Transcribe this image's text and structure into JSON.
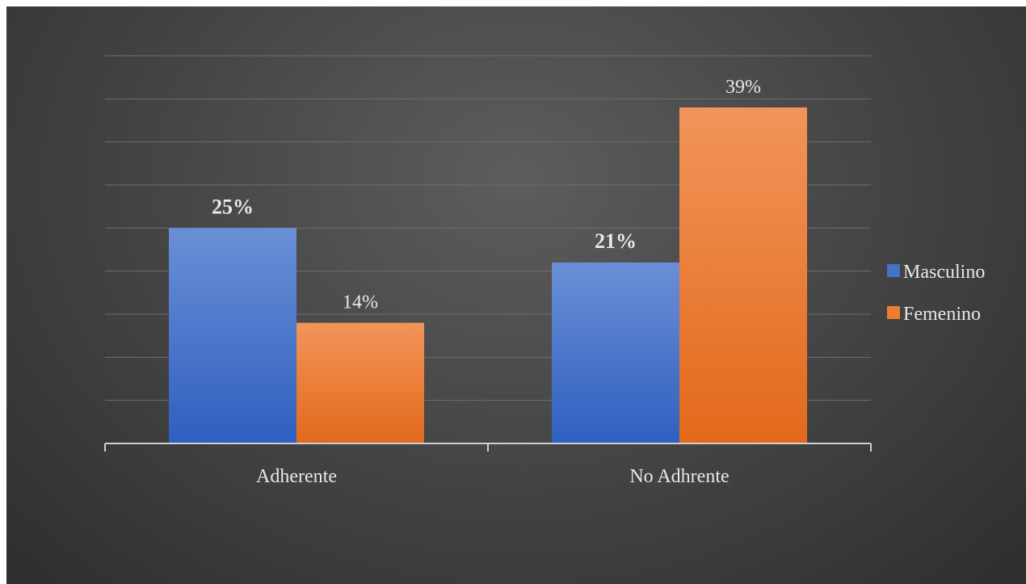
{
  "chart_data": {
    "type": "bar",
    "categories": [
      "Adherente",
      "No Adhrente"
    ],
    "series": [
      {
        "name": "Masculino",
        "values": [
          25,
          21
        ],
        "labels": [
          "25%",
          "21%"
        ],
        "color": "#4472c4",
        "label_bold": true
      },
      {
        "name": "Femenino",
        "values": [
          14,
          39
        ],
        "labels": [
          "14%",
          "39%"
        ],
        "color": "#ed7d31",
        "label_bold": false
      }
    ],
    "ylim": [
      0,
      45
    ],
    "grid": true,
    "legend": "right",
    "title": "",
    "xlabel": "",
    "ylabel": ""
  }
}
